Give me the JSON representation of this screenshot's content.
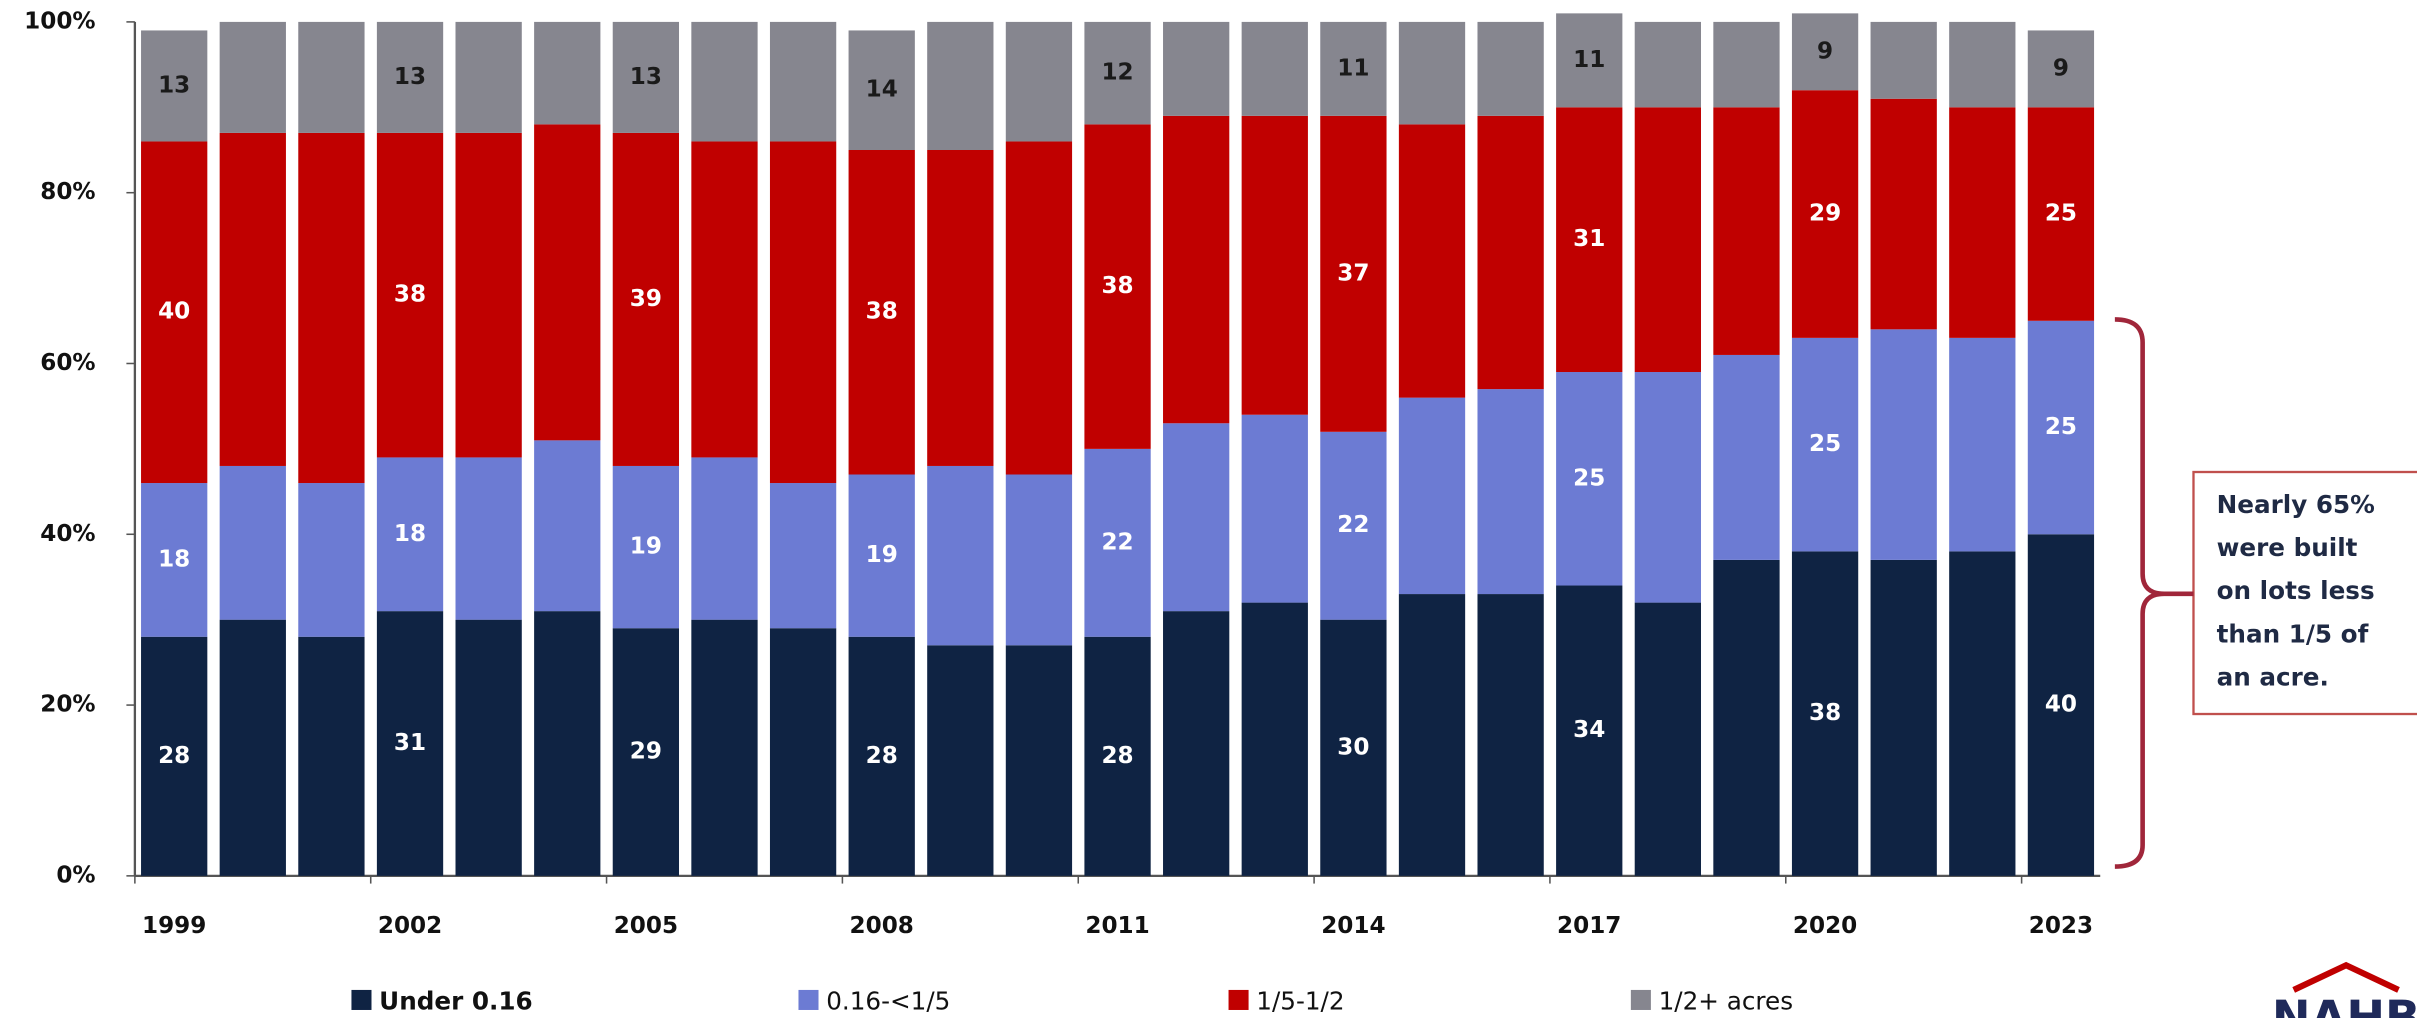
{
  "chart_data": {
    "type": "stacked_bar",
    "categories": [
      "1999",
      null,
      null,
      "2002",
      null,
      null,
      "2005",
      null,
      null,
      "2008",
      null,
      null,
      "2011",
      null,
      null,
      "2014",
      null,
      null,
      "2017",
      null,
      null,
      "2020",
      null,
      null,
      "2023"
    ],
    "series": [
      {
        "name": "Under 0.16",
        "color": "#0f2343",
        "values": [
          28,
          30,
          28,
          31,
          30,
          31,
          29,
          30,
          29,
          28,
          27,
          27,
          28,
          31,
          32,
          30,
          33,
          33,
          34,
          32,
          37,
          38,
          37,
          38,
          40
        ],
        "value_labels": [
          "28",
          null,
          null,
          "31",
          null,
          null,
          "29",
          null,
          null,
          "28",
          null,
          null,
          "28",
          null,
          null,
          "30",
          null,
          null,
          "34",
          null,
          null,
          "38",
          null,
          null,
          "40"
        ]
      },
      {
        "name": "0.16-<1/5",
        "color": "#6c7bd3",
        "values": [
          18,
          18,
          18,
          18,
          19,
          20,
          19,
          19,
          17,
          19,
          21,
          20,
          22,
          22,
          22,
          22,
          23,
          24,
          25,
          27,
          24,
          25,
          27,
          25,
          25
        ],
        "value_labels": [
          "18",
          null,
          null,
          "18",
          null,
          null,
          "19",
          null,
          null,
          "19",
          null,
          null,
          "22",
          null,
          null,
          "22",
          null,
          null,
          "25",
          null,
          null,
          "25",
          null,
          null,
          "25"
        ]
      },
      {
        "name": "1/5-1/2",
        "color": "#c00000",
        "values": [
          40,
          39,
          41,
          38,
          38,
          37,
          39,
          37,
          40,
          38,
          37,
          39,
          38,
          36,
          35,
          37,
          32,
          32,
          31,
          31,
          29,
          29,
          27,
          27,
          25
        ],
        "value_labels": [
          "40",
          null,
          null,
          "38",
          null,
          null,
          "39",
          null,
          null,
          "38",
          null,
          null,
          "38",
          null,
          null,
          "37",
          null,
          null,
          "31",
          null,
          null,
          "29",
          null,
          null,
          "25"
        ]
      },
      {
        "name": "1/2+ acres",
        "color": "#86868f",
        "values": [
          13,
          13,
          13,
          13,
          13,
          12,
          13,
          14,
          14,
          14,
          15,
          14,
          12,
          11,
          11,
          11,
          12,
          11,
          11,
          10,
          10,
          9,
          9,
          10,
          9
        ],
        "value_labels": [
          "13",
          null,
          null,
          "13",
          null,
          null,
          "13",
          null,
          null,
          "14",
          null,
          null,
          "12",
          null,
          null,
          "11",
          null,
          null,
          "11",
          null,
          null,
          "9",
          null,
          null,
          "9"
        ]
      }
    ],
    "ylim": [
      0,
      100
    ],
    "yticks": [
      {
        "value": 0,
        "label": "0%"
      },
      {
        "value": 20,
        "label": "20%"
      },
      {
        "value": 40,
        "label": "40%"
      },
      {
        "value": 60,
        "label": "60%"
      },
      {
        "value": 80,
        "label": "80%"
      },
      {
        "value": 100,
        "label": "100%"
      }
    ],
    "grid": false,
    "legend": "bottom",
    "annotation": [
      "Nearly 65%",
      "were built",
      "on lots less",
      "than 1/5 of",
      "an acre."
    ],
    "logo": "NAHB"
  }
}
